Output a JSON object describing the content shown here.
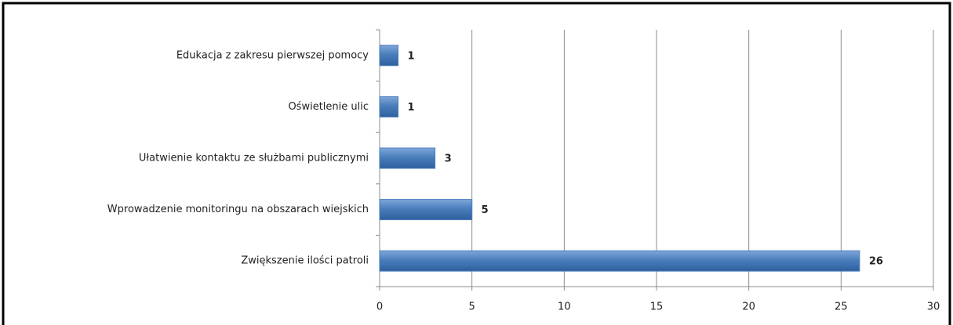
{
  "chart_data": {
    "type": "bar",
    "orientation": "horizontal",
    "categories": [
      "Edukacja z zakresu pierwszej pomocy",
      "Oświetlenie ulic",
      "Ułatwienie kontaktu ze służbami publicznymi",
      "Wprowadzenie monitoringu na obszarach wiejskich",
      "Zwiększenie ilości patroli"
    ],
    "values": [
      1,
      1,
      3,
      5,
      26
    ],
    "color": "#4a7ebb",
    "xlim": [
      0,
      30
    ],
    "xticks": [
      0,
      5,
      10,
      15,
      20,
      25,
      30
    ],
    "grid": true
  }
}
